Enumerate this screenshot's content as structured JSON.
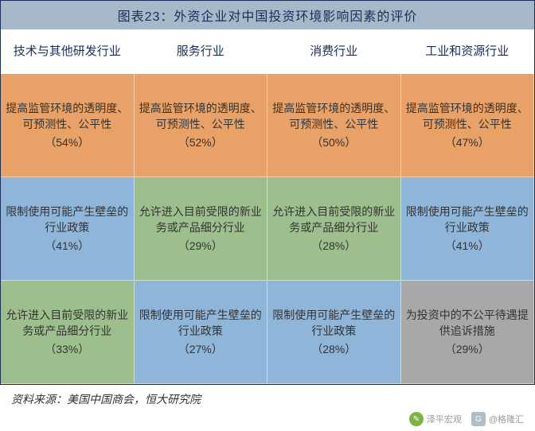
{
  "title": "图表23：外资企业对中国投资环境影响因素的评价",
  "colors": {
    "header_bg": "#ffffff",
    "orange": "#e8a166",
    "blue": "#8fb6d9",
    "green": "#9dbf8e",
    "gray": "#a8a8a8",
    "header_text": "#1a2e5a"
  },
  "columns": [
    "技术与其他研发行业",
    "服务行业",
    "消费行业",
    "工业和资源行业"
  ],
  "rows": [
    [
      {
        "text": "提高监管环境的透明度、可预测性、公平性",
        "pct": "（54%）",
        "color": "orange"
      },
      {
        "text": "提高监管环境的透明度、可预测性、公平性",
        "pct": "（52%）",
        "color": "orange"
      },
      {
        "text": "提高监管环境的透明度、可预测性、公平性",
        "pct": "（50%）",
        "color": "orange"
      },
      {
        "text": "提高监管环境的透明度、可预测性、公平性",
        "pct": "（47%）",
        "color": "orange"
      }
    ],
    [
      {
        "text": "限制使用可能产生壁垒的行业政策",
        "pct": "（41%）",
        "color": "blue"
      },
      {
        "text": "允许进入目前受限的新业务或产品细分行业",
        "pct": "（29%）",
        "color": "green"
      },
      {
        "text": "允许进入目前受限的新业务或产品细分行业",
        "pct": "（28%）",
        "color": "green"
      },
      {
        "text": "限制使用可能产生壁垒的行业政策",
        "pct": "（41%）",
        "color": "blue"
      }
    ],
    [
      {
        "text": "允许进入目前受限的新业务或产品细分行业",
        "pct": "（33%）",
        "color": "green"
      },
      {
        "text": "限制使用可能产生壁垒的行业政策",
        "pct": "（27%）",
        "color": "blue"
      },
      {
        "text": "限制使用可能产生壁垒的行业政策",
        "pct": "（28%）",
        "color": "blue"
      },
      {
        "text": "为投资中的不公平待遇提供追诉措施",
        "pct": "（29%）",
        "color": "gray"
      }
    ]
  ],
  "source": "资料来源：美国中国商会，恒大研究院",
  "footer": {
    "logo1_text": "泽平宏观",
    "logo2_text": "@格隆汇"
  }
}
